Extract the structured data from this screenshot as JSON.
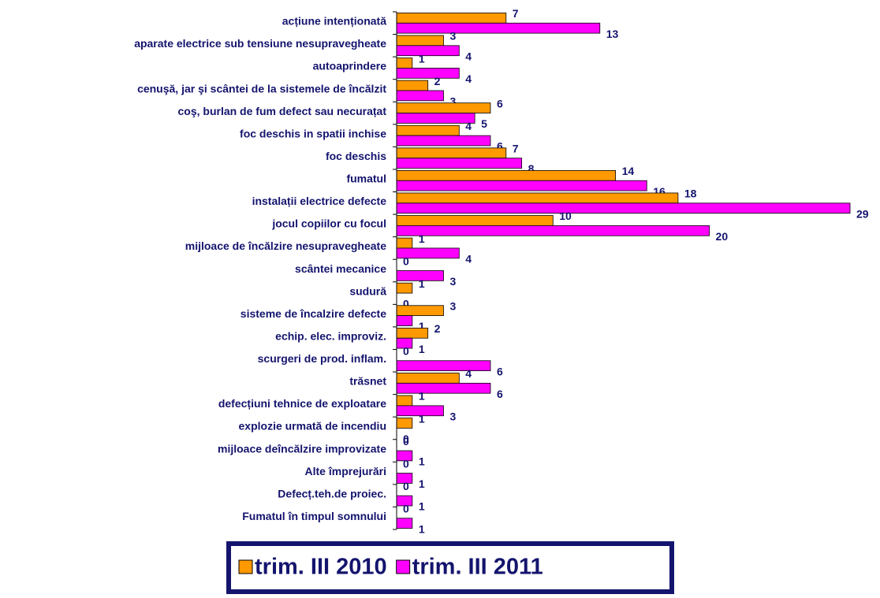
{
  "chart_data": {
    "type": "bar",
    "orientation": "horizontal",
    "categories": [
      "acțiune intenționată",
      "aparate electrice sub tensiune nesupravegheate",
      "autoaprindere",
      "cenuşă, jar şi scântei de la sistemele de încălzit",
      "coş, burlan  de fum defect sau necurațat",
      "foc deschis in spatii inchise",
      "foc deschis",
      "fumatul",
      "instalații electrice defecte",
      "jocul copiilor cu focul",
      "mijloace de încălzire nesupravegheate",
      "scântei mecanice",
      "sudură",
      "sisteme de încalzire defecte",
      "echip. elec. improviz.",
      "scurgeri de prod. inflam.",
      "trăsnet",
      "defecțiuni tehnice de exploatare",
      "explozie urmată de incendiu",
      "mijloace deîncălzire improvizate",
      "Alte împrejurări",
      "Defecț.teh.de proiec.",
      "Fumatul în timpul somnului"
    ],
    "series": [
      {
        "name": "trim. III 2010",
        "color": "#ff9900",
        "values": [
          7,
          3,
          1,
          2,
          6,
          4,
          7,
          14,
          18,
          10,
          1,
          0,
          1,
          3,
          2,
          0,
          4,
          1,
          1,
          0,
          0,
          0,
          0
        ]
      },
      {
        "name": "trim. III 2011",
        "color": "#ff00ff",
        "values": [
          13,
          4,
          4,
          3,
          5,
          6,
          8,
          16,
          29,
          20,
          4,
          3,
          0,
          1,
          1,
          6,
          6,
          3,
          0,
          1,
          1,
          1,
          1
        ]
      }
    ],
    "xlim": [
      0,
      29
    ],
    "legend": "bottom"
  }
}
